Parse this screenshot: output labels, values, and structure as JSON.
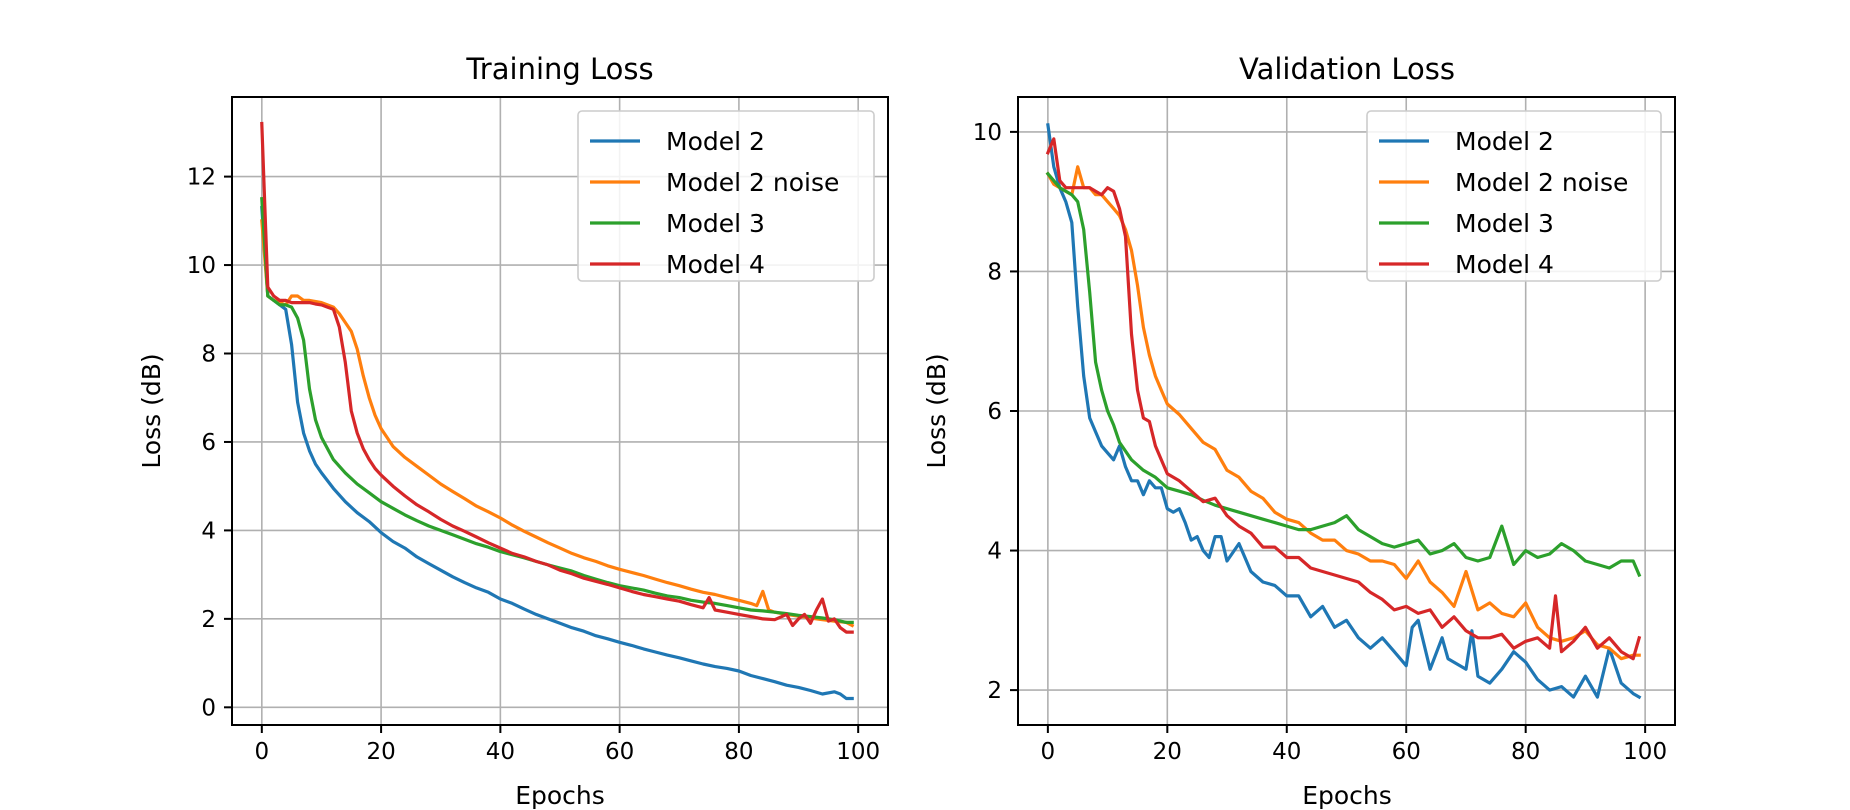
{
  "chart_data": [
    {
      "type": "line",
      "title": "Training Loss",
      "xlabel": "Epochs",
      "ylabel": "Loss (dB)",
      "xlim": [
        -5,
        105
      ],
      "ylim": [
        -0.4,
        13.8
      ],
      "xticks": [
        0,
        20,
        40,
        60,
        80,
        100
      ],
      "yticks": [
        0,
        2,
        4,
        6,
        8,
        10,
        12
      ],
      "grid": true,
      "legend": "top-right",
      "series": [
        {
          "name": "Model 2",
          "color": "#1f77b4",
          "x": [
            0,
            1,
            2,
            3,
            4,
            5,
            6,
            7,
            8,
            9,
            10,
            12,
            14,
            16,
            18,
            20,
            22,
            24,
            26,
            28,
            30,
            32,
            34,
            36,
            38,
            40,
            42,
            44,
            46,
            48,
            50,
            52,
            54,
            56,
            58,
            60,
            62,
            64,
            66,
            68,
            70,
            72,
            74,
            76,
            78,
            80,
            82,
            84,
            86,
            88,
            90,
            92,
            94,
            96,
            97,
            98,
            99
          ],
          "y": [
            11.3,
            9.3,
            9.2,
            9.1,
            9.0,
            8.2,
            6.9,
            6.2,
            5.8,
            5.5,
            5.3,
            4.95,
            4.65,
            4.4,
            4.2,
            3.95,
            3.75,
            3.6,
            3.4,
            3.25,
            3.1,
            2.95,
            2.82,
            2.7,
            2.6,
            2.45,
            2.35,
            2.22,
            2.1,
            2.0,
            1.9,
            1.8,
            1.72,
            1.62,
            1.55,
            1.47,
            1.4,
            1.32,
            1.25,
            1.18,
            1.12,
            1.05,
            0.98,
            0.92,
            0.88,
            0.82,
            0.72,
            0.65,
            0.58,
            0.5,
            0.45,
            0.38,
            0.3,
            0.35,
            0.3,
            0.2,
            0.2
          ]
        },
        {
          "name": "Model 2 noise",
          "color": "#ff7f0e",
          "x": [
            0,
            1,
            2,
            3,
            4,
            5,
            6,
            7,
            8,
            10,
            12,
            13,
            14,
            15,
            16,
            17,
            18,
            19,
            20,
            21,
            22,
            24,
            26,
            28,
            30,
            32,
            34,
            36,
            38,
            40,
            42,
            44,
            46,
            48,
            50,
            52,
            54,
            56,
            58,
            60,
            62,
            64,
            66,
            68,
            70,
            72,
            74,
            76,
            78,
            80,
            82,
            83,
            84,
            85,
            86,
            88,
            90,
            92,
            94,
            96,
            98,
            99
          ],
          "y": [
            11.0,
            9.3,
            9.2,
            9.15,
            9.1,
            9.3,
            9.3,
            9.2,
            9.2,
            9.15,
            9.05,
            8.9,
            8.7,
            8.5,
            8.1,
            7.5,
            7.0,
            6.6,
            6.3,
            6.1,
            5.9,
            5.65,
            5.45,
            5.25,
            5.05,
            4.88,
            4.72,
            4.55,
            4.42,
            4.28,
            4.12,
            3.98,
            3.85,
            3.72,
            3.6,
            3.48,
            3.38,
            3.3,
            3.2,
            3.12,
            3.05,
            2.98,
            2.9,
            2.82,
            2.75,
            2.67,
            2.6,
            2.55,
            2.48,
            2.42,
            2.35,
            2.3,
            2.62,
            2.2,
            2.15,
            2.1,
            2.06,
            2.02,
            1.98,
            1.95,
            1.92,
            1.85
          ]
        },
        {
          "name": "Model 3",
          "color": "#2ca02c",
          "x": [
            0,
            1,
            2,
            3,
            4,
            5,
            6,
            7,
            8,
            9,
            10,
            12,
            14,
            16,
            18,
            20,
            22,
            24,
            26,
            28,
            30,
            32,
            34,
            36,
            38,
            40,
            42,
            44,
            46,
            48,
            50,
            52,
            54,
            56,
            58,
            60,
            62,
            64,
            66,
            68,
            70,
            72,
            74,
            76,
            78,
            80,
            82,
            84,
            86,
            88,
            90,
            92,
            94,
            96,
            98,
            99
          ],
          "y": [
            11.5,
            9.3,
            9.2,
            9.1,
            9.1,
            9.05,
            8.8,
            8.3,
            7.2,
            6.5,
            6.1,
            5.6,
            5.3,
            5.05,
            4.85,
            4.65,
            4.5,
            4.35,
            4.22,
            4.1,
            4.0,
            3.9,
            3.8,
            3.7,
            3.62,
            3.52,
            3.45,
            3.38,
            3.3,
            3.22,
            3.15,
            3.08,
            2.98,
            2.9,
            2.82,
            2.75,
            2.7,
            2.65,
            2.58,
            2.52,
            2.48,
            2.42,
            2.38,
            2.35,
            2.3,
            2.25,
            2.2,
            2.18,
            2.15,
            2.12,
            2.08,
            2.05,
            2.02,
            1.98,
            1.92,
            1.92
          ]
        },
        {
          "name": "Model 4",
          "color": "#d62728",
          "x": [
            0,
            1,
            2,
            3,
            4,
            5,
            6,
            7,
            8,
            9,
            10,
            11,
            12,
            13,
            14,
            15,
            16,
            17,
            18,
            19,
            20,
            22,
            24,
            26,
            28,
            30,
            32,
            34,
            36,
            38,
            40,
            42,
            44,
            46,
            48,
            50,
            52,
            54,
            56,
            58,
            60,
            62,
            64,
            66,
            68,
            70,
            72,
            74,
            75,
            76,
            78,
            80,
            82,
            84,
            86,
            88,
            89,
            90,
            91,
            92,
            93,
            94,
            95,
            96,
            97,
            98,
            99
          ],
          "y": [
            13.2,
            9.5,
            9.3,
            9.2,
            9.2,
            9.15,
            9.15,
            9.15,
            9.15,
            9.12,
            9.1,
            9.05,
            9.0,
            8.6,
            7.8,
            6.7,
            6.2,
            5.85,
            5.6,
            5.4,
            5.25,
            5.0,
            4.78,
            4.58,
            4.42,
            4.25,
            4.1,
            3.98,
            3.85,
            3.72,
            3.6,
            3.48,
            3.4,
            3.3,
            3.22,
            3.1,
            3.02,
            2.92,
            2.85,
            2.78,
            2.7,
            2.62,
            2.55,
            2.5,
            2.45,
            2.4,
            2.32,
            2.25,
            2.48,
            2.2,
            2.15,
            2.1,
            2.05,
            2.0,
            1.98,
            2.1,
            1.85,
            2.0,
            2.1,
            1.9,
            2.2,
            2.45,
            1.95,
            2.0,
            1.8,
            1.7,
            1.7
          ]
        }
      ]
    },
    {
      "type": "line",
      "title": "Validation Loss",
      "xlabel": "Epochs",
      "ylabel": "Loss (dB)",
      "xlim": [
        -5,
        105
      ],
      "ylim": [
        1.5,
        10.5
      ],
      "xticks": [
        0,
        20,
        40,
        60,
        80,
        100
      ],
      "yticks": [
        2,
        4,
        6,
        8,
        10
      ],
      "grid": true,
      "legend": "top-right",
      "series": [
        {
          "name": "Model 2",
          "color": "#1f77b4",
          "x": [
            0,
            1,
            2,
            3,
            4,
            5,
            6,
            7,
            8,
            9,
            10,
            11,
            12,
            13,
            14,
            15,
            16,
            17,
            18,
            19,
            20,
            21,
            22,
            23,
            24,
            25,
            26,
            27,
            28,
            29,
            30,
            32,
            34,
            36,
            38,
            40,
            42,
            44,
            46,
            48,
            50,
            52,
            54,
            56,
            58,
            60,
            61,
            62,
            64,
            66,
            67,
            68,
            70,
            71,
            72,
            74,
            76,
            78,
            80,
            82,
            84,
            86,
            88,
            90,
            92,
            94,
            96,
            98,
            99
          ],
          "y": [
            10.1,
            9.5,
            9.2,
            9.0,
            8.7,
            7.5,
            6.5,
            5.9,
            5.7,
            5.5,
            5.4,
            5.3,
            5.5,
            5.2,
            5.0,
            5.0,
            4.8,
            5.0,
            4.9,
            4.9,
            4.6,
            4.55,
            4.6,
            4.4,
            4.15,
            4.2,
            4.0,
            3.9,
            4.2,
            4.2,
            3.85,
            4.1,
            3.7,
            3.55,
            3.5,
            3.35,
            3.35,
            3.05,
            3.2,
            2.9,
            3.0,
            2.75,
            2.6,
            2.75,
            2.55,
            2.35,
            2.9,
            3.0,
            2.3,
            2.75,
            2.45,
            2.4,
            2.3,
            2.85,
            2.2,
            2.1,
            2.3,
            2.55,
            2.4,
            2.15,
            2.0,
            2.05,
            1.9,
            2.2,
            1.9,
            2.6,
            2.1,
            1.95,
            1.9
          ]
        },
        {
          "name": "Model 2 noise",
          "color": "#ff7f0e",
          "x": [
            0,
            1,
            2,
            3,
            4,
            5,
            6,
            7,
            8,
            9,
            10,
            11,
            12,
            13,
            14,
            15,
            16,
            17,
            18,
            19,
            20,
            22,
            24,
            26,
            28,
            30,
            32,
            34,
            36,
            38,
            40,
            42,
            44,
            46,
            48,
            50,
            52,
            54,
            56,
            58,
            60,
            62,
            64,
            66,
            68,
            70,
            72,
            74,
            76,
            78,
            80,
            82,
            84,
            86,
            88,
            90,
            92,
            94,
            96,
            98,
            99
          ],
          "y": [
            9.4,
            9.25,
            9.2,
            9.15,
            9.1,
            9.5,
            9.2,
            9.2,
            9.1,
            9.1,
            9.0,
            8.9,
            8.8,
            8.6,
            8.3,
            7.8,
            7.2,
            6.8,
            6.5,
            6.3,
            6.1,
            5.95,
            5.75,
            5.55,
            5.45,
            5.15,
            5.05,
            4.85,
            4.75,
            4.55,
            4.45,
            4.4,
            4.25,
            4.15,
            4.15,
            4.0,
            3.95,
            3.85,
            3.85,
            3.8,
            3.6,
            3.85,
            3.55,
            3.4,
            3.2,
            3.7,
            3.15,
            3.25,
            3.1,
            3.05,
            3.25,
            2.9,
            2.75,
            2.7,
            2.75,
            2.85,
            2.65,
            2.6,
            2.45,
            2.5,
            2.5
          ]
        },
        {
          "name": "Model 3",
          "color": "#2ca02c",
          "x": [
            0,
            1,
            2,
            3,
            4,
            5,
            6,
            7,
            8,
            9,
            10,
            11,
            12,
            14,
            16,
            18,
            20,
            22,
            24,
            26,
            28,
            30,
            32,
            34,
            36,
            38,
            40,
            42,
            44,
            46,
            48,
            50,
            52,
            54,
            56,
            58,
            60,
            62,
            64,
            66,
            68,
            70,
            72,
            74,
            76,
            78,
            80,
            82,
            84,
            86,
            88,
            90,
            92,
            94,
            96,
            98,
            99
          ],
          "y": [
            9.4,
            9.3,
            9.2,
            9.15,
            9.1,
            9.0,
            8.6,
            7.7,
            6.7,
            6.3,
            6.0,
            5.8,
            5.55,
            5.3,
            5.15,
            5.05,
            4.9,
            4.85,
            4.8,
            4.72,
            4.65,
            4.6,
            4.55,
            4.5,
            4.45,
            4.4,
            4.35,
            4.3,
            4.3,
            4.35,
            4.4,
            4.5,
            4.3,
            4.2,
            4.1,
            4.05,
            4.1,
            4.15,
            3.95,
            4.0,
            4.1,
            3.9,
            3.85,
            3.9,
            4.35,
            3.8,
            4.0,
            3.9,
            3.95,
            4.1,
            4.0,
            3.85,
            3.8,
            3.75,
            3.85,
            3.85,
            3.65
          ]
        },
        {
          "name": "Model 4",
          "color": "#d62728",
          "x": [
            0,
            1,
            2,
            3,
            4,
            5,
            6,
            7,
            8,
            9,
            10,
            11,
            12,
            13,
            14,
            15,
            16,
            17,
            18,
            19,
            20,
            22,
            24,
            26,
            28,
            30,
            32,
            34,
            36,
            38,
            40,
            42,
            44,
            46,
            48,
            50,
            52,
            54,
            56,
            58,
            60,
            62,
            64,
            66,
            68,
            70,
            72,
            74,
            76,
            78,
            80,
            82,
            84,
            85,
            86,
            88,
            90,
            92,
            94,
            96,
            98,
            99
          ],
          "y": [
            9.7,
            9.9,
            9.3,
            9.2,
            9.2,
            9.2,
            9.2,
            9.2,
            9.15,
            9.1,
            9.2,
            9.15,
            8.9,
            8.5,
            7.1,
            6.3,
            5.9,
            5.85,
            5.5,
            5.3,
            5.1,
            5.0,
            4.85,
            4.7,
            4.75,
            4.5,
            4.35,
            4.25,
            4.05,
            4.05,
            3.9,
            3.9,
            3.75,
            3.7,
            3.65,
            3.6,
            3.55,
            3.4,
            3.3,
            3.15,
            3.2,
            3.1,
            3.15,
            2.9,
            3.05,
            2.85,
            2.75,
            2.75,
            2.8,
            2.6,
            2.7,
            2.75,
            2.6,
            3.35,
            2.55,
            2.7,
            2.9,
            2.6,
            2.75,
            2.55,
            2.45,
            2.75
          ]
        }
      ]
    }
  ]
}
